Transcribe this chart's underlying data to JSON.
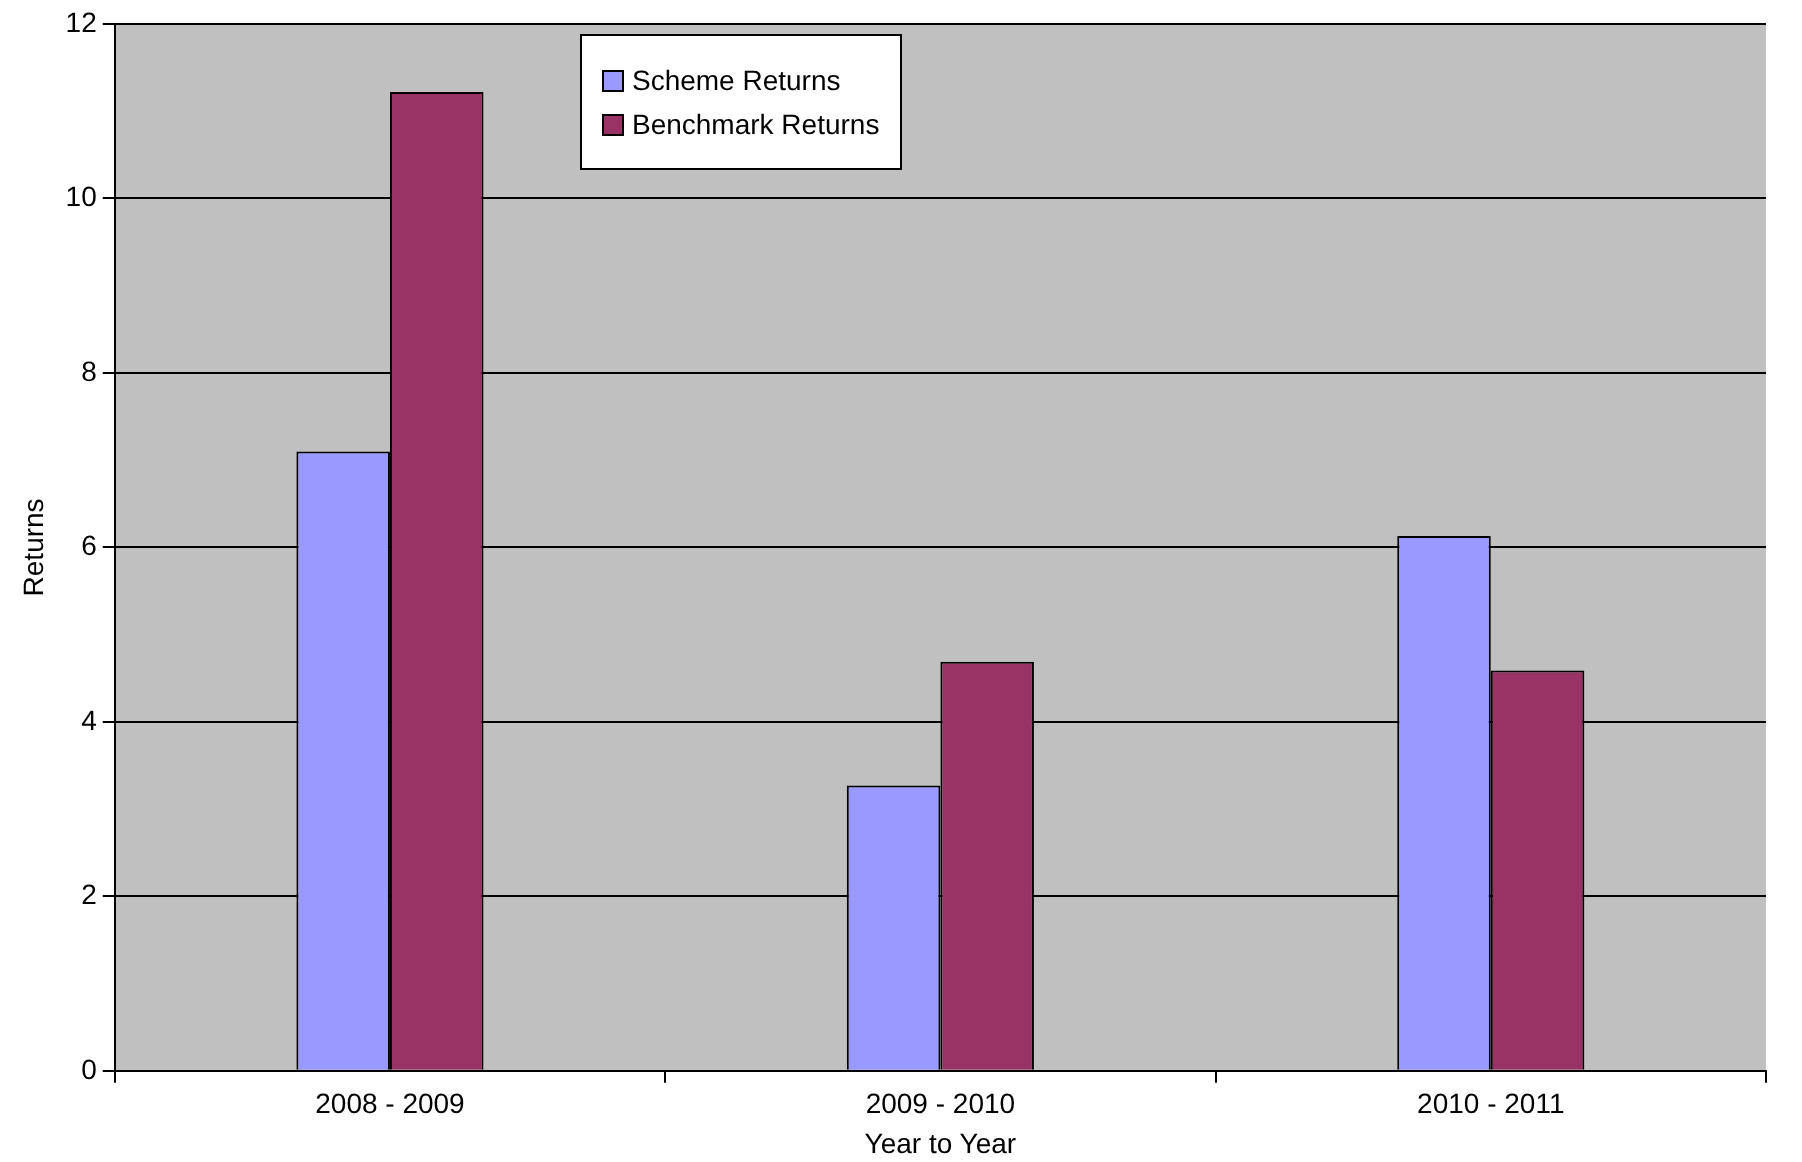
{
  "chart_data": {
    "type": "bar",
    "xlabel": "Year to Year",
    "ylabel": "Returns",
    "categories": [
      "2008 - 2009",
      "2009 - 2010",
      "2010 - 2011"
    ],
    "series": [
      {
        "name": "Scheme Returns",
        "color": "#9999ff",
        "values": [
          7.1,
          3.27,
          6.13
        ]
      },
      {
        "name": "Benchmark Returns",
        "color": "#993366",
        "values": [
          11.22,
          4.69,
          4.59
        ]
      }
    ],
    "ylim": [
      0,
      12
    ],
    "yticks": [
      0,
      2,
      4,
      6,
      8,
      10,
      12
    ],
    "grid": "y",
    "legend": "top"
  }
}
